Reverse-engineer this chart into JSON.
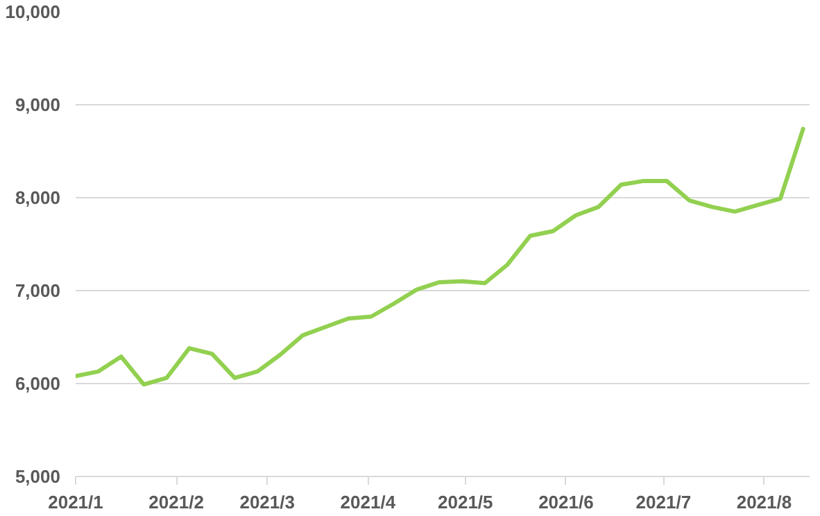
{
  "chart_data": {
    "type": "line",
    "x": [
      "2021-01-01",
      "2021-01-08",
      "2021-01-15",
      "2021-01-22",
      "2021-01-29",
      "2021-02-05",
      "2021-02-12",
      "2021-02-19",
      "2021-02-26",
      "2021-03-05",
      "2021-03-12",
      "2021-03-19",
      "2021-03-26",
      "2021-04-02",
      "2021-04-09",
      "2021-04-16",
      "2021-04-23",
      "2021-04-30",
      "2021-05-07",
      "2021-05-14",
      "2021-05-21",
      "2021-05-28",
      "2021-06-04",
      "2021-06-11",
      "2021-06-18",
      "2021-06-25",
      "2021-07-02",
      "2021-07-09",
      "2021-07-16",
      "2021-07-23",
      "2021-07-30",
      "2021-08-06",
      "2021-08-13"
    ],
    "series": [
      {
        "color": "#92d050",
        "values": [
          6080,
          6130,
          6290,
          5990,
          6060,
          6380,
          6320,
          6060,
          6130,
          6310,
          6520,
          6610,
          6700,
          6720,
          6860,
          7010,
          7090,
          7100,
          7080,
          7280,
          7590,
          7640,
          7810,
          7900,
          8140,
          8180,
          8180,
          7970,
          7900,
          7850,
          7920,
          7990,
          8740
        ]
      }
    ],
    "xlim": [
      "2021-01-01",
      "2021-08-15"
    ],
    "xticks": [
      {
        "value": "2021-01-01",
        "label": "2021/1"
      },
      {
        "value": "2021-02-01",
        "label": "2021/2"
      },
      {
        "value": "2021-03-01",
        "label": "2021/3"
      },
      {
        "value": "2021-04-01",
        "label": "2021/4"
      },
      {
        "value": "2021-05-01",
        "label": "2021/5"
      },
      {
        "value": "2021-06-01",
        "label": "2021/6"
      },
      {
        "value": "2021-07-01",
        "label": "2021/7"
      },
      {
        "value": "2021-08-01",
        "label": "2021/8"
      }
    ],
    "ylim": [
      5000,
      10000
    ],
    "yticks": [
      {
        "value": 5000,
        "label": "5,000"
      },
      {
        "value": 6000,
        "label": "6,000"
      },
      {
        "value": 7000,
        "label": "7,000"
      },
      {
        "value": 8000,
        "label": "8,000"
      },
      {
        "value": 9000,
        "label": "9,000"
      },
      {
        "value": 10000,
        "label": "10,000"
      }
    ],
    "grid": "y",
    "line_style": "solid"
  }
}
